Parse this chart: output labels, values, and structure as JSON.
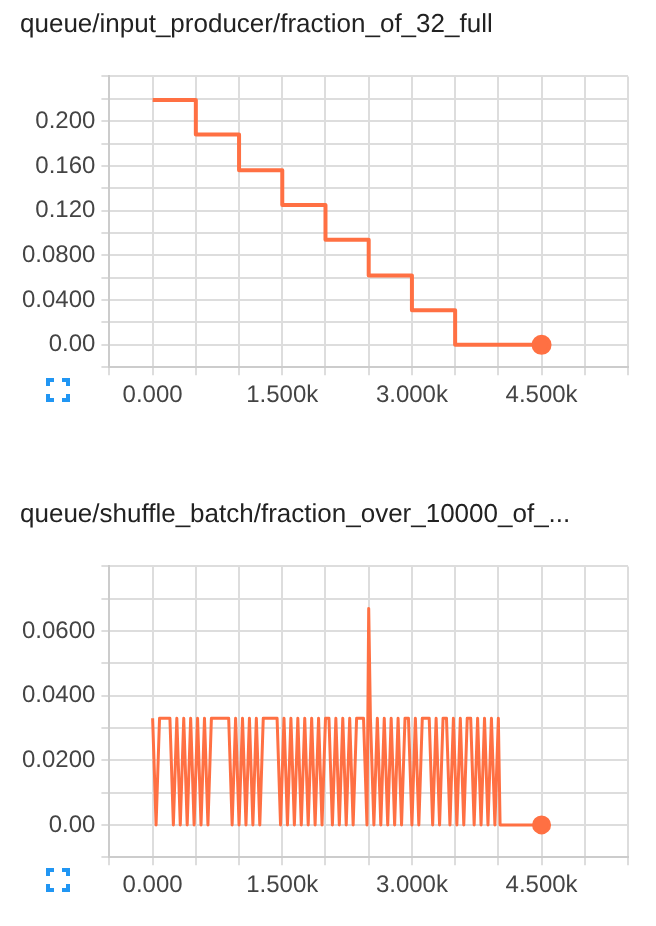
{
  "chart_data": [
    {
      "type": "step",
      "title": "queue/input_producer/fraction_of_32_full",
      "x": [
        0,
        500,
        1000,
        1500,
        2000,
        2500,
        3000,
        3500,
        4500
      ],
      "series": [
        {
          "color": "#ff7043",
          "values": [
            0.219,
            0.188,
            0.156,
            0.125,
            0.094,
            0.062,
            0.031,
            0,
            0
          ]
        }
      ],
      "xlim": [
        -500,
        5500
      ],
      "xticks": [
        {
          "value": -500,
          "label": null
        },
        {
          "value": 0,
          "label": "0.000"
        },
        {
          "value": 500,
          "label": null
        },
        {
          "value": 1000,
          "label": null
        },
        {
          "value": 1500,
          "label": "1.500k"
        },
        {
          "value": 2000,
          "label": null
        },
        {
          "value": 2500,
          "label": null
        },
        {
          "value": 3000,
          "label": "3.000k"
        },
        {
          "value": 3500,
          "label": null
        },
        {
          "value": 4000,
          "label": null
        },
        {
          "value": 4500,
          "label": "4.500k"
        },
        {
          "value": 5000,
          "label": null
        },
        {
          "value": 5500,
          "label": null
        }
      ],
      "ylim": [
        -0.02,
        0.24
      ],
      "yticks": [
        {
          "value": -0.02,
          "label": null
        },
        {
          "value": 0,
          "label": "0.00"
        },
        {
          "value": 0.02,
          "label": null
        },
        {
          "value": 0.04,
          "label": "0.0400"
        },
        {
          "value": 0.06,
          "label": null
        },
        {
          "value": 0.08,
          "label": "0.0800"
        },
        {
          "value": 0.1,
          "label": null
        },
        {
          "value": 0.12,
          "label": "0.120"
        },
        {
          "value": 0.14,
          "label": null
        },
        {
          "value": 0.16,
          "label": "0.160"
        },
        {
          "value": 0.18,
          "label": null
        },
        {
          "value": 0.2,
          "label": "0.200"
        },
        {
          "value": 0.22,
          "label": null
        },
        {
          "value": 0.24,
          "label": null
        }
      ],
      "grid": true,
      "legend": false
    },
    {
      "type": "line",
      "title": "queue/shuffle_batch/fraction_over_10000_of_...",
      "x": [
        0,
        40,
        80,
        120,
        160,
        200,
        240,
        280,
        320,
        360,
        400,
        440,
        480,
        520,
        560,
        600,
        640,
        680,
        720,
        760,
        800,
        840,
        880,
        920,
        960,
        1000,
        1040,
        1080,
        1120,
        1160,
        1200,
        1240,
        1280,
        1320,
        1360,
        1400,
        1440,
        1480,
        1520,
        1560,
        1600,
        1640,
        1680,
        1720,
        1760,
        1800,
        1840,
        1880,
        1920,
        1960,
        2000,
        2040,
        2080,
        2120,
        2160,
        2200,
        2240,
        2280,
        2320,
        2360,
        2400,
        2440,
        2480,
        2500,
        2520,
        2560,
        2600,
        2640,
        2680,
        2720,
        2760,
        2800,
        2840,
        2880,
        2920,
        2960,
        3000,
        3040,
        3080,
        3120,
        3160,
        3200,
        3240,
        3280,
        3320,
        3360,
        3400,
        3440,
        3480,
        3520,
        3560,
        3600,
        3640,
        3680,
        3720,
        3760,
        3800,
        3840,
        3880,
        3920,
        3960,
        4000,
        4020,
        4500
      ],
      "series": [
        {
          "color": "#ff7043",
          "values": [
            0.033,
            0,
            0.033,
            0.033,
            0.033,
            0.033,
            0,
            0.033,
            0,
            0.033,
            0,
            0.033,
            0,
            0.033,
            0,
            0.033,
            0,
            0.033,
            0.033,
            0.033,
            0.033,
            0.033,
            0.033,
            0,
            0.033,
            0,
            0.033,
            0,
            0.033,
            0,
            0.033,
            0,
            0.033,
            0.033,
            0.033,
            0.033,
            0.033,
            0,
            0.033,
            0,
            0.033,
            0,
            0.033,
            0,
            0.033,
            0,
            0.033,
            0,
            0.033,
            0,
            0.033,
            0.033,
            0,
            0.033,
            0,
            0.033,
            0,
            0.033,
            0,
            0.033,
            0.033,
            0.033,
            0,
            0.067,
            0.033,
            0,
            0.033,
            0,
            0.033,
            0,
            0.033,
            0,
            0.033,
            0,
            0.033,
            0.033,
            0,
            0.033,
            0,
            0.033,
            0.033,
            0.033,
            0,
            0.033,
            0,
            0.033,
            0.033,
            0,
            0.033,
            0,
            0.033,
            0,
            0.033,
            0.033,
            0,
            0.033,
            0,
            0.033,
            0,
            0.033,
            0,
            0.033,
            0,
            0
          ]
        }
      ],
      "xlim": [
        -500,
        5500
      ],
      "xticks": [
        {
          "value": -500,
          "label": null
        },
        {
          "value": 0,
          "label": "0.000"
        },
        {
          "value": 500,
          "label": null
        },
        {
          "value": 1000,
          "label": null
        },
        {
          "value": 1500,
          "label": "1.500k"
        },
        {
          "value": 2000,
          "label": null
        },
        {
          "value": 2500,
          "label": null
        },
        {
          "value": 3000,
          "label": "3.000k"
        },
        {
          "value": 3500,
          "label": null
        },
        {
          "value": 4000,
          "label": null
        },
        {
          "value": 4500,
          "label": "4.500k"
        },
        {
          "value": 5000,
          "label": null
        },
        {
          "value": 5500,
          "label": null
        }
      ],
      "ylim": [
        -0.01,
        0.08
      ],
      "yticks": [
        {
          "value": -0.01,
          "label": null
        },
        {
          "value": 0,
          "label": "0.00"
        },
        {
          "value": 0.01,
          "label": null
        },
        {
          "value": 0.02,
          "label": "0.0200"
        },
        {
          "value": 0.03,
          "label": null
        },
        {
          "value": 0.04,
          "label": "0.0400"
        },
        {
          "value": 0.05,
          "label": null
        },
        {
          "value": 0.06,
          "label": "0.0600"
        },
        {
          "value": 0.07,
          "label": null
        },
        {
          "value": 0.08,
          "label": null
        }
      ],
      "grid": true,
      "legend": false
    }
  ]
}
